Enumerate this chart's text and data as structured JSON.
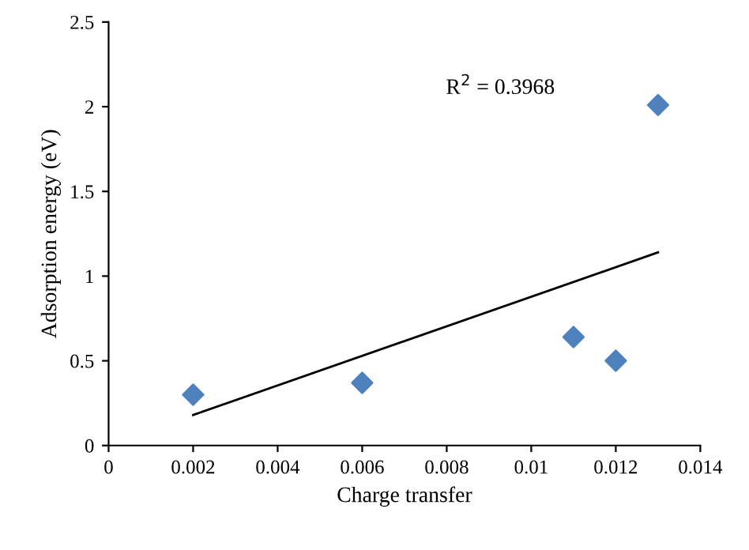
{
  "chart_data": {
    "type": "scatter",
    "xlabel": "Charge transfer",
    "ylabel": "Adsorption energy (eV)",
    "series": [
      {
        "color": "#4f81bd",
        "marker": "diamond",
        "x": [
          0.002,
          0.006,
          0.011,
          0.012,
          0.013
        ],
        "values": [
          0.3,
          0.37,
          0.64,
          0.5,
          2.01
        ]
      },
      {
        "type": "line",
        "color": "#000000",
        "marker": "none",
        "line_style": "solid",
        "x": [
          0.002,
          0.013
        ],
        "values": [
          0.18,
          1.14
        ]
      }
    ],
    "annotations": [
      "R$^{2}$ = 0.3968"
    ],
    "xlim": [
      0,
      0.014
    ],
    "xticks": [
      0,
      0.002,
      0.004,
      0.006,
      0.008,
      0.01,
      0.012,
      0.014
    ],
    "ylim": [
      0,
      2.5
    ],
    "yticks": [
      0,
      0.5,
      1,
      1.5,
      2,
      2.5
    ],
    "grid": false,
    "legend": false
  }
}
